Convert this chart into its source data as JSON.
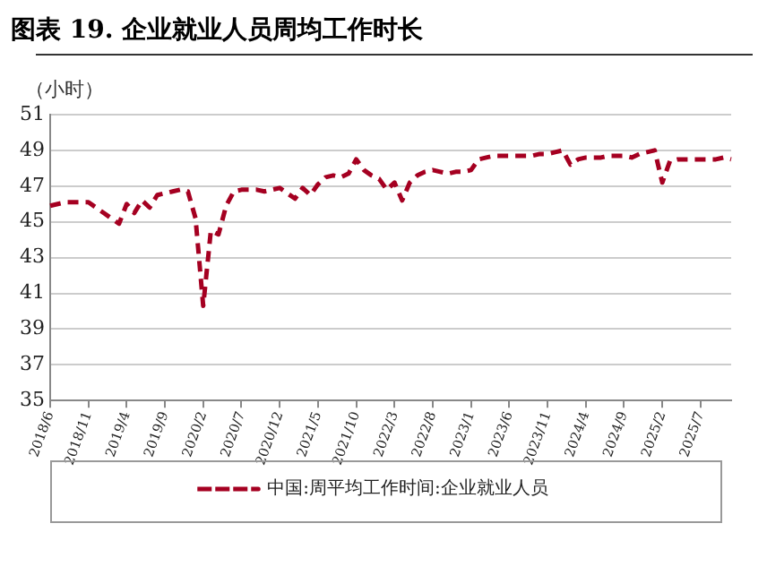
{
  "chart_data": {
    "type": "line",
    "title": "图表 19. 企业就业人员周均工作时长",
    "ylabel": "（小时）",
    "categories": [
      "2018/6",
      null,
      null,
      null,
      null,
      "2018/11",
      null,
      null,
      null,
      null,
      "2019/4",
      null,
      null,
      null,
      null,
      "2019/9",
      null,
      null,
      null,
      null,
      "2020/2",
      null,
      null,
      null,
      null,
      "2020/7",
      null,
      null,
      null,
      null,
      "2020/12",
      null,
      null,
      null,
      null,
      "2021/5",
      null,
      null,
      null,
      null,
      "2021/10",
      null,
      null,
      null,
      null,
      "2022/3",
      null,
      null,
      null,
      null,
      "2022/8",
      null,
      null,
      null,
      null,
      "2023/1",
      null,
      null,
      null,
      null,
      "2023/6",
      null,
      null,
      null,
      null,
      "2023/11",
      null,
      null,
      null,
      null,
      "2024/4",
      null,
      null,
      null,
      null,
      "2024/9",
      null,
      null,
      null,
      null,
      "2025/2",
      null,
      null,
      null,
      null,
      "2025/7",
      null,
      null,
      null,
      null
    ],
    "series": [
      {
        "name": "中国:周平均工作时间:企业就业人员",
        "color": "#a50021",
        "values": [
          45.9,
          46.0,
          46.1,
          46.1,
          46.1,
          46.1,
          45.8,
          45.5,
          45.2,
          44.9,
          46.0,
          45.5,
          46.2,
          45.8,
          46.5,
          46.6,
          46.7,
          46.8,
          46.7,
          45.2,
          40.3,
          44.5,
          44.3,
          45.9,
          46.7,
          46.8,
          46.8,
          46.8,
          46.7,
          46.8,
          46.9,
          46.6,
          46.3,
          46.9,
          46.5,
          47.1,
          47.5,
          47.6,
          47.5,
          47.7,
          48.5,
          47.9,
          47.6,
          47.4,
          46.8,
          47.2,
          46.2,
          47.2,
          47.6,
          47.8,
          47.9,
          47.8,
          47.7,
          47.8,
          47.8,
          47.9,
          48.5,
          48.6,
          48.7,
          48.7,
          48.7,
          48.7,
          48.7,
          48.7,
          48.8,
          48.8,
          48.9,
          49.0,
          48.2,
          48.5,
          48.6,
          48.6,
          48.6,
          48.7,
          48.7,
          48.7,
          48.6,
          48.8,
          48.9,
          49.0,
          47.2,
          48.4,
          48.5,
          48.5,
          48.5,
          48.5,
          48.5,
          48.5,
          48.6,
          48.5
        ]
      }
    ],
    "ylim": [
      35,
      51
    ],
    "yticks": [
      35,
      37,
      39,
      41,
      43,
      45,
      47,
      49,
      51
    ],
    "grid": "y",
    "legend": "bottom",
    "line_style": "dashed",
    "marker": "none"
  }
}
